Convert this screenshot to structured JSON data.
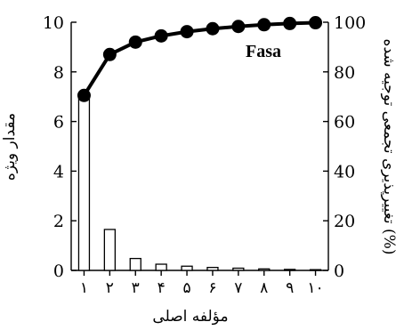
{
  "chart_data": {
    "type": "bar",
    "panel_label": "Fasa",
    "xlabel": "مؤلفه اصلی",
    "ylabel_left": "مقدار ویژه",
    "ylabel_right": "تغییرپذیری تجمعی توجیه شده (%)",
    "categories": [
      "۱",
      "۲",
      "۳",
      "۴",
      "۵",
      "۶",
      "۷",
      "۸",
      "۹",
      "۱۰"
    ],
    "ylim_left": [
      0,
      10
    ],
    "ylim_right": [
      0,
      100
    ],
    "yticks_left": [
      "0",
      "2",
      "4",
      "6",
      "8",
      "10"
    ],
    "yticks_right": [
      "0",
      "20",
      "40",
      "60",
      "80",
      "100"
    ],
    "series": [
      {
        "kind": "bar",
        "axis": "left",
        "values": [
          7.05,
          1.65,
          0.48,
          0.25,
          0.17,
          0.12,
          0.09,
          0.06,
          0.04,
          0.03
        ]
      },
      {
        "kind": "line",
        "axis": "right",
        "marker": "circle",
        "values": [
          70.5,
          87.0,
          92.0,
          94.5,
          96.2,
          97.4,
          98.3,
          99.0,
          99.5,
          99.8
        ]
      }
    ],
    "grid": false,
    "colors": {
      "bar_fill": "#ffffff",
      "bar_stroke": "#000000",
      "line": "#000000",
      "marker": "#000000"
    }
  }
}
